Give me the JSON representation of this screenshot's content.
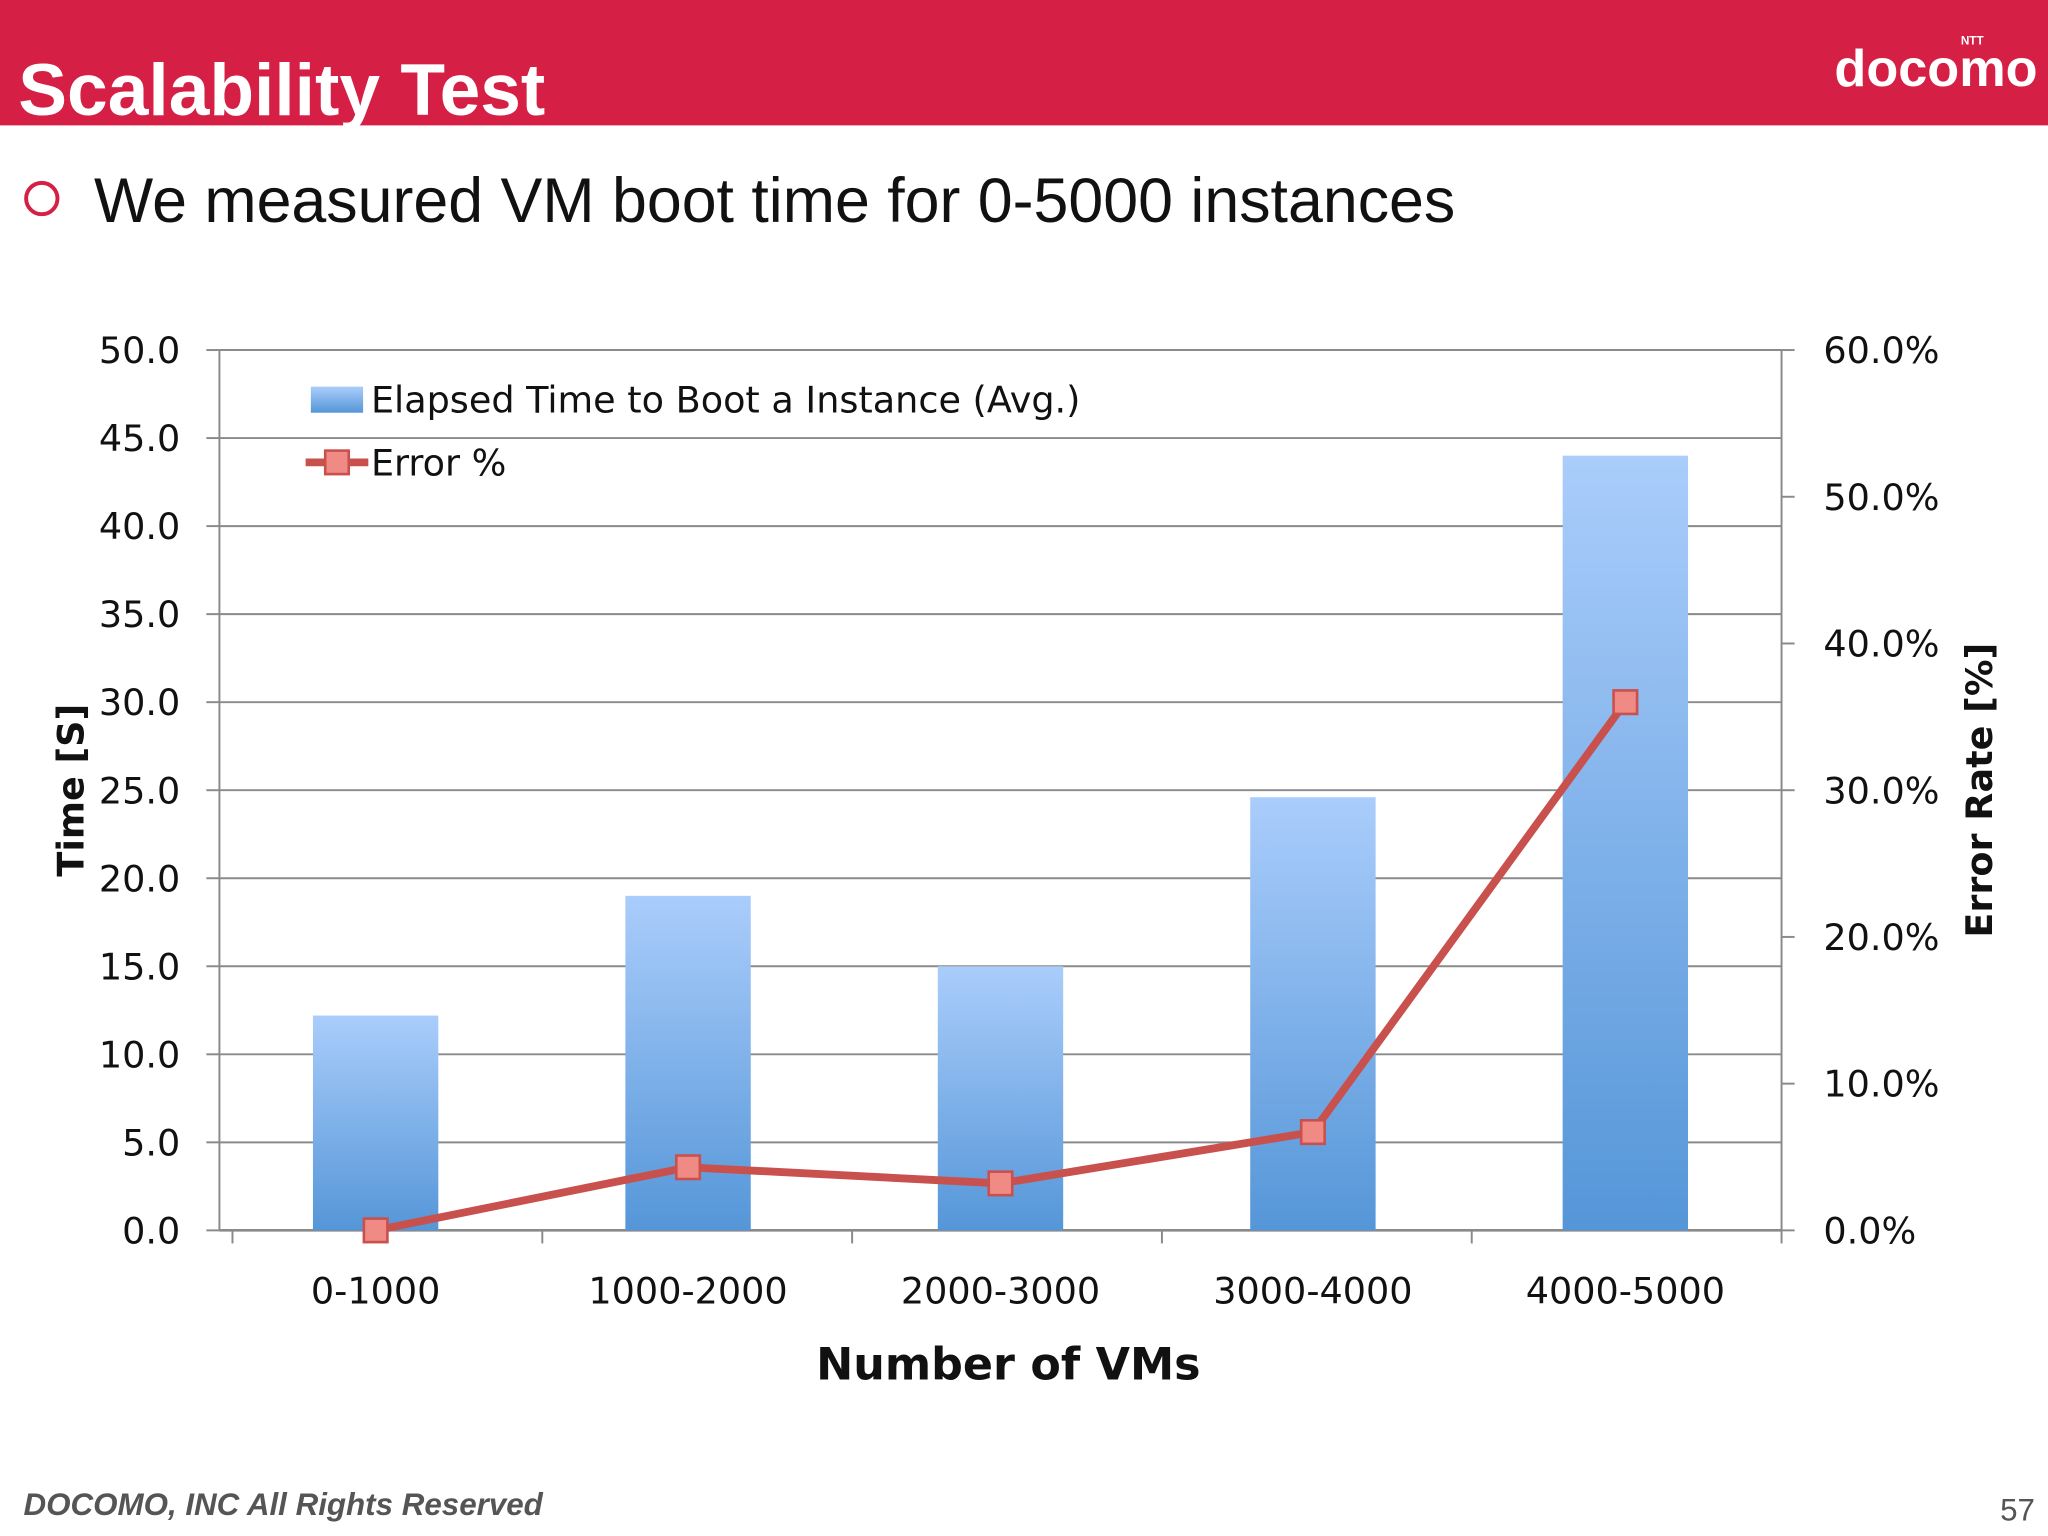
{
  "header": {
    "title": "Scalability Test",
    "logo": "docomo",
    "logo_super": "NTT"
  },
  "bullet": "We measured VM boot time for 0-5000 instances",
  "footer": {
    "copyright": "DOCOMO, INC All Rights Reserved",
    "page": "57"
  },
  "chart_data": {
    "type": "combo",
    "x_label": "Number of VMs",
    "y_label": "Time  [S]",
    "y2_label": "Error Rate [%]",
    "categories": [
      "0-1000",
      "1000-2000",
      "2000-3000",
      "3000-4000",
      "4000-5000"
    ],
    "series": [
      {
        "name": "Elapsed Time to Boot a Instance (Avg.)",
        "type": "bar",
        "color": "#5b9bdf",
        "values": [
          12.2,
          19.0,
          15.0,
          24.6,
          44.0
        ]
      },
      {
        "name": "Error %",
        "type": "line",
        "axis": "y2",
        "color": "#c9514d",
        "values": [
          0.0,
          4.3,
          3.2,
          6.7,
          36.0
        ]
      }
    ],
    "ylim": [
      0,
      50
    ],
    "yticks": [
      {
        "value": 0,
        "label": "0.0"
      },
      {
        "value": 5,
        "label": "5.0"
      },
      {
        "value": 10,
        "label": "10.0"
      },
      {
        "value": 15,
        "label": "15.0"
      },
      {
        "value": 20,
        "label": "20.0"
      },
      {
        "value": 25,
        "label": "25.0"
      },
      {
        "value": 30,
        "label": "30.0"
      },
      {
        "value": 35,
        "label": "35.0"
      },
      {
        "value": 40,
        "label": "40.0"
      },
      {
        "value": 45,
        "label": "45.0"
      },
      {
        "value": 50,
        "label": "50.0"
      }
    ],
    "y2lim": [
      0,
      60
    ],
    "y2ticks": [
      {
        "value": 0,
        "label": "0.0%"
      },
      {
        "value": 10,
        "label": "10.0%"
      },
      {
        "value": 20,
        "label": "20.0%"
      },
      {
        "value": 30,
        "label": "30.0%"
      },
      {
        "value": 40,
        "label": "40.0%"
      },
      {
        "value": 50,
        "label": "50.0%"
      },
      {
        "value": 60,
        "label": "60.0%"
      }
    ],
    "grid": true,
    "legend": "top-left"
  }
}
